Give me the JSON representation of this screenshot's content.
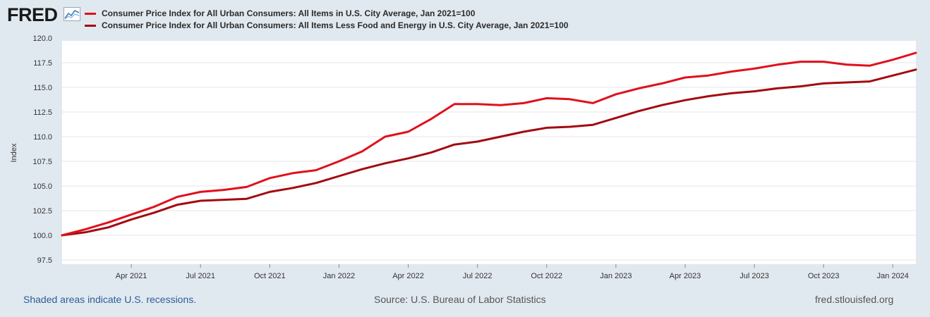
{
  "logo": {
    "text": "FRED"
  },
  "colors": {
    "headline": "#e0101c",
    "core": "#a30a0f",
    "link": "#2a5e97"
  },
  "footer": {
    "recession_note": "Shaded areas indicate U.S. recessions.",
    "source": "Source: U.S. Bureau of Labor Statistics",
    "url": "fred.stlouisfed.org"
  },
  "chart_data": {
    "type": "line",
    "ylabel": "Index",
    "ylim": [
      97.5,
      120.0
    ],
    "yticks": [
      97.5,
      100.0,
      102.5,
      105.0,
      107.5,
      110.0,
      112.5,
      115.0,
      117.5,
      120.0
    ],
    "ytick_labels": [
      "97.5",
      "100.0",
      "102.5",
      "105.0",
      "107.5",
      "110.0",
      "112.5",
      "115.0",
      "117.5",
      "120.0"
    ],
    "xtick_labels": [
      "Apr 2021",
      "Jul 2021",
      "Oct 2021",
      "Jan 2022",
      "Apr 2022",
      "Jul 2022",
      "Oct 2022",
      "Jan 2023",
      "Apr 2023",
      "Jul 2023",
      "Oct 2023",
      "Jan 2024"
    ],
    "xtick_dates": [
      "2021-04",
      "2021-07",
      "2021-10",
      "2022-01",
      "2022-04",
      "2022-07",
      "2022-10",
      "2023-01",
      "2023-04",
      "2023-07",
      "2023-10",
      "2024-01"
    ],
    "x": [
      "2021-01",
      "2021-02",
      "2021-03",
      "2021-04",
      "2021-05",
      "2021-06",
      "2021-07",
      "2021-08",
      "2021-09",
      "2021-10",
      "2021-11",
      "2021-12",
      "2022-01",
      "2022-02",
      "2022-03",
      "2022-04",
      "2022-05",
      "2022-06",
      "2022-07",
      "2022-08",
      "2022-09",
      "2022-10",
      "2022-11",
      "2022-12",
      "2023-01",
      "2023-02",
      "2023-03",
      "2023-04",
      "2023-05",
      "2023-06",
      "2023-07",
      "2023-08",
      "2023-09",
      "2023-10",
      "2023-11",
      "2023-12",
      "2024-01",
      "2024-02"
    ],
    "x_range": [
      "2021-01",
      "2024-02"
    ],
    "grid": true,
    "legend_placement": "top-left",
    "series": [
      {
        "name": "Consumer Price Index for All Urban Consumers: All Items in U.S. City Average, Jan 2021=100",
        "color": "#e0101c",
        "values": [
          100.0,
          100.6,
          101.3,
          102.1,
          102.9,
          103.9,
          104.4,
          104.6,
          104.9,
          105.8,
          106.3,
          106.6,
          107.5,
          108.5,
          110.0,
          110.5,
          111.8,
          113.3,
          113.3,
          113.2,
          113.4,
          113.9,
          113.8,
          113.4,
          114.3,
          114.9,
          115.4,
          116.0,
          116.2,
          116.6,
          116.9,
          117.3,
          117.6,
          117.6,
          117.3,
          117.2,
          117.8,
          118.5
        ]
      },
      {
        "name": "Consumer Price Index for All Urban Consumers: All Items Less Food and Energy in U.S. City Average, Jan 2021=100",
        "color": "#a30a0f",
        "values": [
          100.0,
          100.3,
          100.8,
          101.6,
          102.3,
          103.1,
          103.5,
          103.6,
          103.7,
          104.4,
          104.8,
          105.3,
          106.0,
          106.7,
          107.3,
          107.8,
          108.4,
          109.2,
          109.5,
          110.0,
          110.5,
          110.9,
          111.0,
          111.2,
          111.9,
          112.6,
          113.2,
          113.7,
          114.1,
          114.4,
          114.6,
          114.9,
          115.1,
          115.4,
          115.5,
          115.6,
          116.2,
          116.8
        ]
      }
    ]
  }
}
